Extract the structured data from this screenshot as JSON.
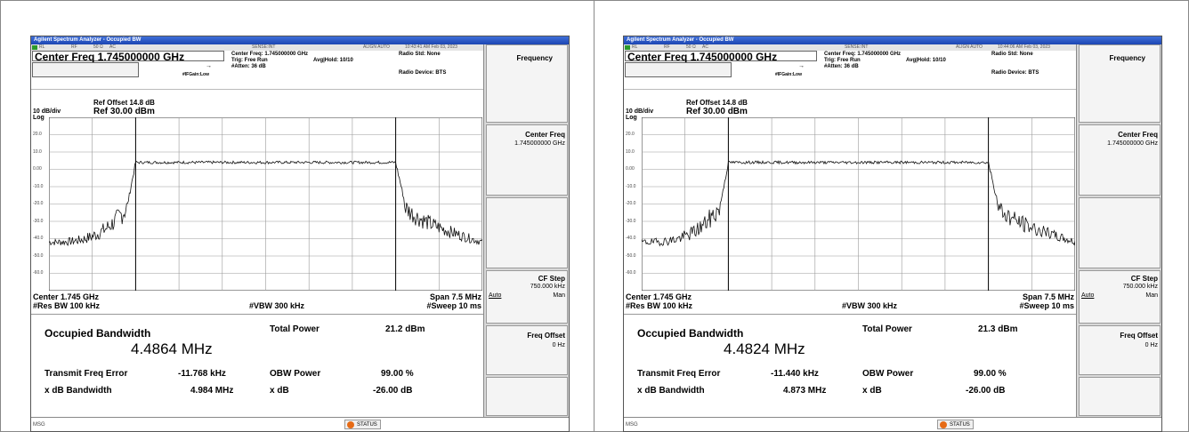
{
  "screens": [
    {
      "title": "Agilent Spectrum Analyzer - Occupied BW",
      "status": {
        "rl": "RL",
        "rf": "RF",
        "imp": "50 Ω",
        "ac": "AC",
        "sense": "SENSE:INT",
        "align": "ALIGN AUTO",
        "timestamp": "10:43:41 AM Feb 03, 2023"
      },
      "header": {
        "center_freq": "Center Freq 1.745000000 GHz",
        "cf_detail": "Center Freq: 1.745000000 GHz",
        "trig": "Trig: Free Run",
        "avg_hold": "Avg|Hold: 10/10",
        "if_gain": "#IFGain:Low",
        "atten": "#Atten: 36 dB",
        "radio_std": "Radio Std: None",
        "radio_device": "Radio Device: BTS"
      },
      "scale": {
        "ref_offset": "Ref Offset 14.8 dB",
        "ref_level": "Ref 30.00 dBm",
        "db_div": "10 dB/div",
        "log": "Log",
        "y_ticks": [
          "20.0",
          "10.0",
          "0.00",
          "-10.0",
          "-20.0",
          "-30.0",
          "-40.0",
          "-50.0",
          "-60.0"
        ]
      },
      "span": {
        "center": "Center 1.745 GHz",
        "res_bw": "#Res BW 100 kHz",
        "vbw": "#VBW 300 kHz",
        "span": "Span 7.5 MHz",
        "sweep": "#Sweep 10 ms"
      },
      "measurements": {
        "obw_label": "Occupied Bandwidth",
        "obw_value": "4.4864 MHz",
        "total_power_label": "Total Power",
        "total_power_value": "21.2 dBm",
        "tfe_label": "Transmit Freq Error",
        "tfe_value": "-11.768 kHz",
        "obw_power_label": "OBW Power",
        "obw_power_value": "99.00 %",
        "xdb_bw_label": "x dB Bandwidth",
        "xdb_bw_value": "4.984 MHz",
        "xdb_label": "x dB",
        "xdb_value": "-26.00 dB"
      },
      "softkeys": {
        "frequency": "Frequency",
        "center_freq": "Center Freq",
        "center_freq_value": "1.745000000 GHz",
        "cf_step": "CF Step",
        "cf_step_value": "750.000 kHz",
        "auto": "Auto",
        "man": "Man",
        "freq_offset": "Freq Offset",
        "freq_offset_value": "0 Hz"
      },
      "bottom": {
        "msg": "MSG",
        "status": "STATUS"
      },
      "trace_seed": 7
    },
    {
      "title": "Agilent Spectrum Analyzer - Occupied BW",
      "status": {
        "rl": "RL",
        "rf": "RF",
        "imp": "50 Ω",
        "ac": "AC",
        "sense": "SENSE:INT",
        "align": "ALIGN AUTO",
        "timestamp": "10:44:06 AM Feb 03, 2023"
      },
      "header": {
        "center_freq": "Center Freq 1.745000000 GHz",
        "cf_detail": "Center Freq: 1.745000000 GHz",
        "trig": "Trig: Free Run",
        "avg_hold": "Avg|Hold: 10/10",
        "if_gain": "#IFGain:Low",
        "atten": "#Atten: 36 dB",
        "radio_std": "Radio Std: None",
        "radio_device": "Radio Device: BTS"
      },
      "scale": {
        "ref_offset": "Ref Offset 14.8 dB",
        "ref_level": "Ref 30.00 dBm",
        "db_div": "10 dB/div",
        "log": "Log",
        "y_ticks": [
          "20.0",
          "10.0",
          "0.00",
          "-10.0",
          "-20.0",
          "-30.0",
          "-40.0",
          "-50.0",
          "-60.0"
        ]
      },
      "span": {
        "center": "Center 1.745 GHz",
        "res_bw": "#Res BW 100 kHz",
        "vbw": "#VBW 300 kHz",
        "span": "Span 7.5 MHz",
        "sweep": "#Sweep 10 ms"
      },
      "measurements": {
        "obw_label": "Occupied Bandwidth",
        "obw_value": "4.4824 MHz",
        "total_power_label": "Total Power",
        "total_power_value": "21.3 dBm",
        "tfe_label": "Transmit Freq Error",
        "tfe_value": "-11.440 kHz",
        "obw_power_label": "OBW Power",
        "obw_power_value": "99.00 %",
        "xdb_bw_label": "x dB Bandwidth",
        "xdb_bw_value": "4.873 MHz",
        "xdb_label": "x dB",
        "xdb_value": "-26.00 dB"
      },
      "softkeys": {
        "frequency": "Frequency",
        "center_freq": "Center Freq",
        "center_freq_value": "1.745000000 GHz",
        "cf_step": "CF Step",
        "cf_step_value": "750.000 kHz",
        "auto": "Auto",
        "man": "Man",
        "freq_offset": "Freq Offset",
        "freq_offset_value": "0 Hz"
      },
      "bottom": {
        "msg": "MSG",
        "status": "STATUS"
      },
      "trace_seed": 19
    }
  ]
}
